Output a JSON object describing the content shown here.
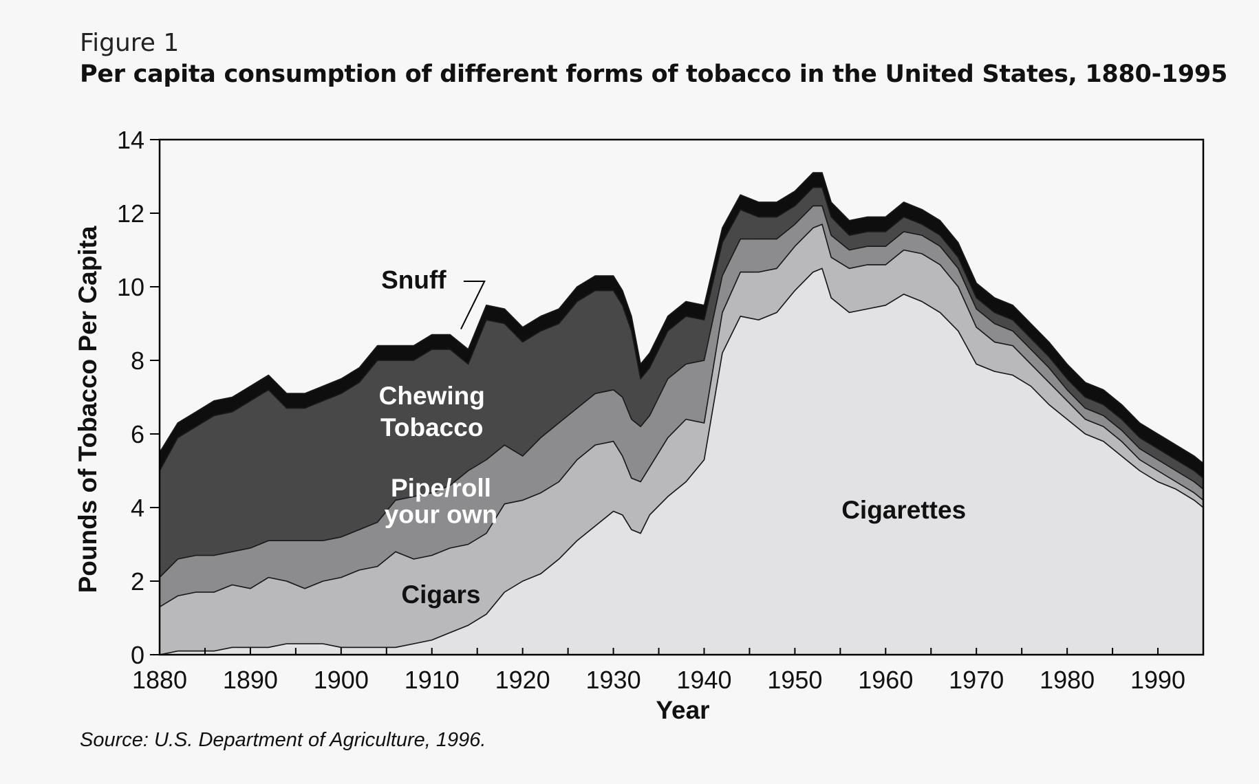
{
  "figure_label": "Figure 1",
  "title": "Per capita consumption of different forms of tobacco in the United States, 1880-1995",
  "source": "Source:  U.S. Department of Agriculture, 1996.",
  "chart_data": {
    "type": "area",
    "stacked": true,
    "title": "Per capita consumption of different forms of tobacco in the United States, 1880-1995",
    "xlabel": "Year",
    "ylabel": "Pounds of Tobacco Per Capita",
    "xlim": [
      1880,
      1995
    ],
    "ylim": [
      0,
      14
    ],
    "x_ticks": [
      1880,
      1890,
      1900,
      1910,
      1920,
      1930,
      1940,
      1950,
      1960,
      1970,
      1980,
      1990
    ],
    "y_ticks": [
      0,
      2,
      4,
      6,
      8,
      10,
      12,
      14
    ],
    "grid": false,
    "legend": "none (series labelled directly on the areas)",
    "x": [
      1880,
      1882,
      1884,
      1886,
      1888,
      1890,
      1892,
      1894,
      1896,
      1898,
      1900,
      1902,
      1904,
      1906,
      1908,
      1910,
      1912,
      1914,
      1916,
      1918,
      1920,
      1922,
      1924,
      1926,
      1928,
      1930,
      1931,
      1932,
      1933,
      1934,
      1936,
      1938,
      1940,
      1942,
      1944,
      1946,
      1948,
      1950,
      1952,
      1953,
      1954,
      1956,
      1958,
      1960,
      1962,
      1964,
      1966,
      1968,
      1970,
      1972,
      1974,
      1976,
      1978,
      1980,
      1982,
      1984,
      1986,
      1988,
      1990,
      1992,
      1994,
      1995
    ],
    "series": [
      {
        "name": "Cigarettes",
        "label": "Cigarettes",
        "color": "#e2e2e4",
        "values": [
          0.0,
          0.1,
          0.1,
          0.1,
          0.2,
          0.2,
          0.2,
          0.3,
          0.3,
          0.3,
          0.2,
          0.2,
          0.2,
          0.2,
          0.3,
          0.4,
          0.6,
          0.8,
          1.1,
          1.7,
          2.0,
          2.2,
          2.6,
          3.1,
          3.5,
          3.9,
          3.8,
          3.4,
          3.3,
          3.8,
          4.3,
          4.7,
          5.3,
          8.2,
          9.2,
          9.1,
          9.3,
          9.9,
          10.4,
          10.5,
          9.7,
          9.3,
          9.4,
          9.5,
          9.8,
          9.6,
          9.3,
          8.8,
          7.9,
          7.7,
          7.6,
          7.3,
          6.8,
          6.4,
          6.0,
          5.8,
          5.4,
          5.0,
          4.7,
          4.5,
          4.2,
          4.0
        ]
      },
      {
        "name": "Cigars",
        "label": "Cigars",
        "color": "#b9b9bb",
        "values": [
          1.3,
          1.5,
          1.6,
          1.6,
          1.7,
          1.6,
          1.9,
          1.7,
          1.5,
          1.7,
          1.9,
          2.1,
          2.2,
          2.6,
          2.3,
          2.3,
          2.3,
          2.2,
          2.2,
          2.4,
          2.2,
          2.2,
          2.1,
          2.2,
          2.2,
          1.9,
          1.6,
          1.4,
          1.4,
          1.3,
          1.6,
          1.7,
          1.0,
          1.1,
          1.2,
          1.3,
          1.2,
          1.2,
          1.2,
          1.2,
          1.1,
          1.2,
          1.2,
          1.1,
          1.2,
          1.3,
          1.3,
          1.2,
          1.0,
          0.8,
          0.8,
          0.6,
          0.6,
          0.5,
          0.4,
          0.4,
          0.4,
          0.3,
          0.3,
          0.2,
          0.2,
          0.2
        ]
      },
      {
        "name": "Pipe/roll your own",
        "label": "Pipe/roll\nyour own",
        "color": "#8c8c8e",
        "values": [
          0.8,
          1.0,
          1.0,
          1.0,
          0.9,
          1.1,
          1.0,
          1.1,
          1.3,
          1.1,
          1.1,
          1.1,
          1.2,
          1.4,
          1.7,
          1.7,
          1.7,
          2.0,
          2.0,
          1.6,
          1.2,
          1.5,
          1.6,
          1.4,
          1.4,
          1.4,
          1.6,
          1.6,
          1.5,
          1.4,
          1.6,
          1.5,
          1.7,
          1.0,
          0.9,
          0.9,
          0.8,
          0.6,
          0.6,
          0.5,
          0.6,
          0.5,
          0.5,
          0.5,
          0.5,
          0.5,
          0.5,
          0.5,
          0.5,
          0.5,
          0.4,
          0.4,
          0.4,
          0.3,
          0.3,
          0.3,
          0.3,
          0.3,
          0.3,
          0.3,
          0.3,
          0.3
        ]
      },
      {
        "name": "Chewing Tobacco",
        "label": "Chewing\nTobacco",
        "color": "#484848",
        "values": [
          2.9,
          3.3,
          3.5,
          3.8,
          3.8,
          4.0,
          4.1,
          3.6,
          3.6,
          3.8,
          3.9,
          4.0,
          4.4,
          3.8,
          3.7,
          3.9,
          3.7,
          2.9,
          3.8,
          3.3,
          3.1,
          2.9,
          2.7,
          2.9,
          2.8,
          2.7,
          2.5,
          2.4,
          1.3,
          1.3,
          1.3,
          1.3,
          1.1,
          0.9,
          0.8,
          0.6,
          0.6,
          0.5,
          0.5,
          0.5,
          0.5,
          0.4,
          0.4,
          0.4,
          0.4,
          0.3,
          0.3,
          0.3,
          0.3,
          0.3,
          0.3,
          0.3,
          0.3,
          0.3,
          0.3,
          0.3,
          0.3,
          0.3,
          0.3,
          0.3,
          0.3,
          0.3
        ]
      },
      {
        "name": "Snuff",
        "label": "Snuff",
        "color": "#0e0e0e",
        "values": [
          0.5,
          0.4,
          0.4,
          0.4,
          0.4,
          0.4,
          0.4,
          0.4,
          0.4,
          0.4,
          0.4,
          0.4,
          0.4,
          0.4,
          0.4,
          0.4,
          0.4,
          0.4,
          0.4,
          0.4,
          0.4,
          0.4,
          0.4,
          0.4,
          0.4,
          0.4,
          0.4,
          0.4,
          0.4,
          0.4,
          0.4,
          0.4,
          0.4,
          0.4,
          0.4,
          0.4,
          0.4,
          0.4,
          0.4,
          0.4,
          0.4,
          0.4,
          0.4,
          0.4,
          0.4,
          0.4,
          0.4,
          0.4,
          0.4,
          0.4,
          0.4,
          0.4,
          0.4,
          0.4,
          0.4,
          0.4,
          0.4,
          0.4,
          0.4,
          0.4,
          0.4,
          0.4
        ]
      }
    ]
  }
}
